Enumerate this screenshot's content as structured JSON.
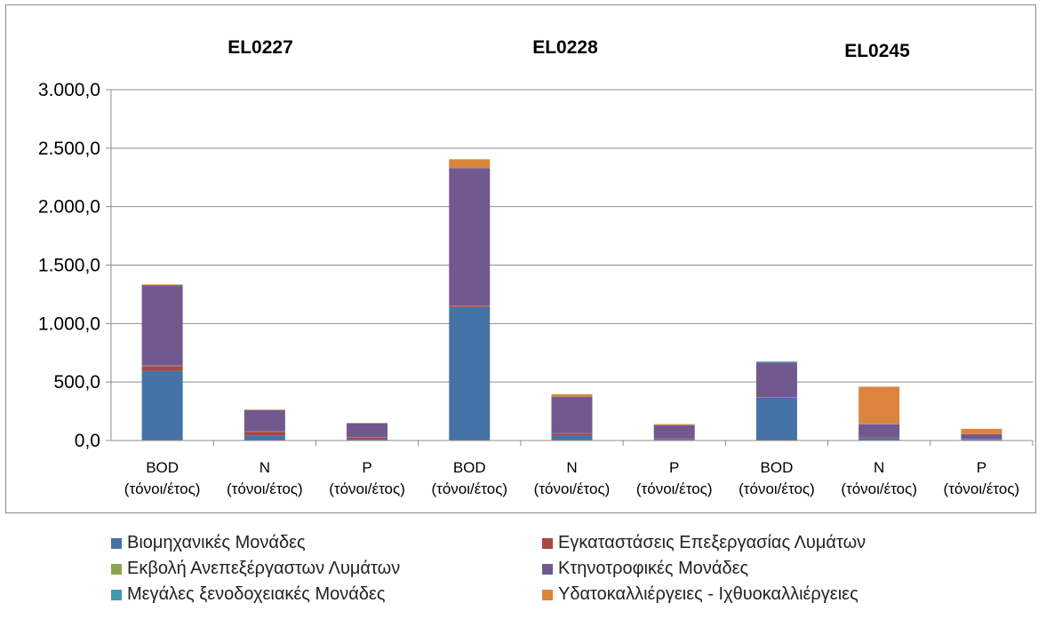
{
  "chart_data": {
    "type": "bar",
    "stacked": true,
    "groups": [
      "EL0227",
      "EL0228",
      "EL0245"
    ],
    "categories": [
      {
        "group": "EL0227",
        "line1": "BOD",
        "line2": "(τόνοι/έτος)"
      },
      {
        "group": "EL0227",
        "line1": "N",
        "line2": "(τόνοι/έτος)"
      },
      {
        "group": "EL0227",
        "line1": "P",
        "line2": "(τόνοι/έτος)"
      },
      {
        "group": "EL0228",
        "line1": "BOD",
        "line2": "(τόνοι/έτος)"
      },
      {
        "group": "EL0228",
        "line1": "N",
        "line2": "(τόνοι/έτος)"
      },
      {
        "group": "EL0228",
        "line1": "P",
        "line2": "(τόνοι/έτος)"
      },
      {
        "group": "EL0245",
        "line1": "BOD",
        "line2": "(τόνοι/έτος)"
      },
      {
        "group": "EL0245",
        "line1": "N",
        "line2": "(τόνοι/έτος)"
      },
      {
        "group": "EL0245",
        "line1": "P",
        "line2": "(τόνοι/έτος)"
      }
    ],
    "series": [
      {
        "name": "Βιομηχανικές Μονάδες",
        "color": "#4572a7",
        "values": [
          595,
          45,
          15,
          1140,
          45,
          10,
          365,
          20,
          10
        ]
      },
      {
        "name": "Εγκαταστάσεις Επεξεργασίας Λυμάτων",
        "color": "#aa4643",
        "values": [
          40,
          30,
          10,
          10,
          15,
          5,
          5,
          3,
          2
        ]
      },
      {
        "name": "Εκβολή Ανεπεξέργαστων Λυμάτων",
        "color": "#89a54e",
        "values": [
          5,
          3,
          2,
          3,
          2,
          1,
          2,
          1,
          1
        ]
      },
      {
        "name": "Κτηνοτροφικές Μονάδες",
        "color": "#71588f",
        "values": [
          685,
          180,
          120,
          1175,
          310,
          115,
          295,
          115,
          40
        ]
      },
      {
        "name": "Μεγάλες ξενοδοχειακές Μονάδες",
        "color": "#4198af",
        "values": [
          5,
          2,
          1,
          2,
          3,
          1,
          8,
          3,
          1
        ]
      },
      {
        "name": "Υδατοκαλλιέργειες - Ιχθυοκαλλιέργειες",
        "color": "#db843d",
        "values": [
          5,
          5,
          2,
          75,
          20,
          8,
          0,
          318,
          46
        ]
      }
    ],
    "yticks": [
      "0,0",
      "500,0",
      "1.000,0",
      "1.500,0",
      "2.000,0",
      "2.500,0",
      "3.000,0"
    ],
    "ylim": [
      0,
      3000
    ],
    "grid": true,
    "legend_position": "bottom"
  }
}
